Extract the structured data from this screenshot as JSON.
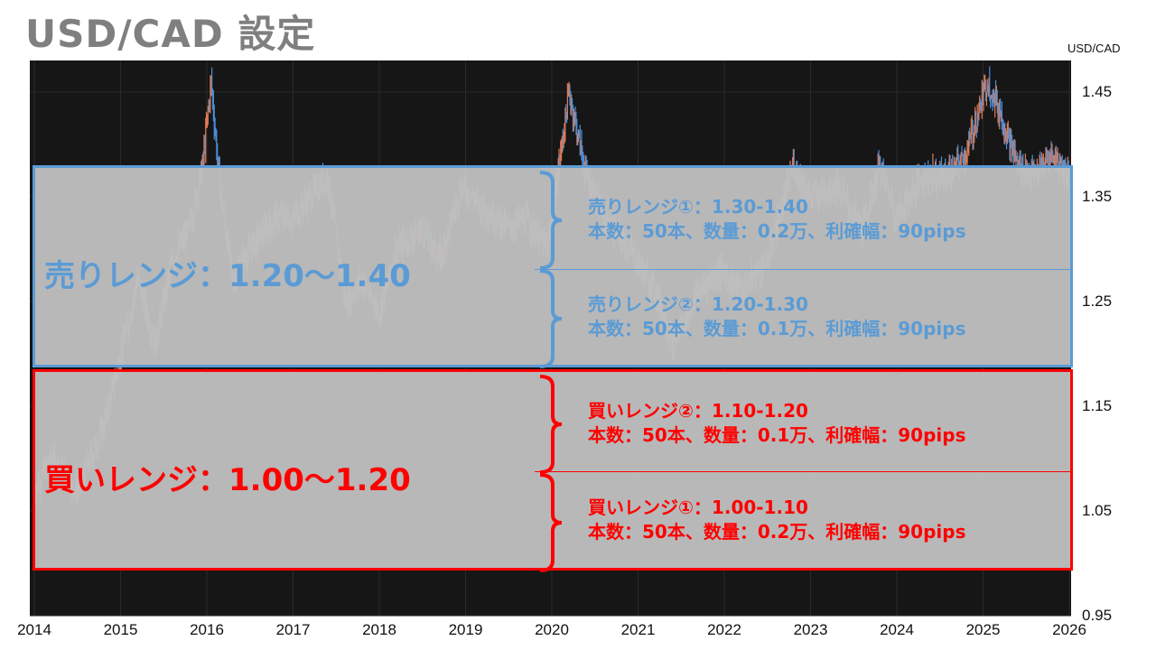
{
  "title": "USD/CAD  設定",
  "chart_data": {
    "type": "candlestick",
    "unit_label": "USD/CAD",
    "x_ticks": [
      "2014",
      "2015",
      "2016",
      "2017",
      "2018",
      "2019",
      "2020",
      "2021",
      "2022",
      "2023",
      "2024",
      "2025",
      "2026"
    ],
    "y_ticks": [
      "1.45",
      "1.35",
      "1.25",
      "1.15",
      "1.05",
      "0.95"
    ],
    "ylim": [
      0.95,
      1.48
    ],
    "xlim": [
      2014,
      2026
    ],
    "series": [
      {
        "x": 2014.0,
        "y": 1.07
      },
      {
        "x": 2014.2,
        "y": 1.1
      },
      {
        "x": 2014.5,
        "y": 1.07
      },
      {
        "x": 2014.8,
        "y": 1.13
      },
      {
        "x": 2015.0,
        "y": 1.2
      },
      {
        "x": 2015.2,
        "y": 1.27
      },
      {
        "x": 2015.4,
        "y": 1.21
      },
      {
        "x": 2015.6,
        "y": 1.29
      },
      {
        "x": 2015.8,
        "y": 1.32
      },
      {
        "x": 2015.95,
        "y": 1.38
      },
      {
        "x": 2016.05,
        "y": 1.46
      },
      {
        "x": 2016.15,
        "y": 1.36
      },
      {
        "x": 2016.3,
        "y": 1.27
      },
      {
        "x": 2016.5,
        "y": 1.3
      },
      {
        "x": 2016.8,
        "y": 1.33
      },
      {
        "x": 2017.0,
        "y": 1.33
      },
      {
        "x": 2017.2,
        "y": 1.35
      },
      {
        "x": 2017.4,
        "y": 1.37
      },
      {
        "x": 2017.6,
        "y": 1.25
      },
      {
        "x": 2017.8,
        "y": 1.27
      },
      {
        "x": 2018.0,
        "y": 1.24
      },
      {
        "x": 2018.2,
        "y": 1.3
      },
      {
        "x": 2018.5,
        "y": 1.32
      },
      {
        "x": 2018.7,
        "y": 1.29
      },
      {
        "x": 2018.95,
        "y": 1.36
      },
      {
        "x": 2019.2,
        "y": 1.34
      },
      {
        "x": 2019.5,
        "y": 1.32
      },
      {
        "x": 2019.7,
        "y": 1.33
      },
      {
        "x": 2019.95,
        "y": 1.3
      },
      {
        "x": 2020.2,
        "y": 1.45
      },
      {
        "x": 2020.4,
        "y": 1.37
      },
      {
        "x": 2020.6,
        "y": 1.33
      },
      {
        "x": 2020.9,
        "y": 1.3
      },
      {
        "x": 2021.2,
        "y": 1.26
      },
      {
        "x": 2021.4,
        "y": 1.21
      },
      {
        "x": 2021.7,
        "y": 1.26
      },
      {
        "x": 2021.95,
        "y": 1.28
      },
      {
        "x": 2022.2,
        "y": 1.26
      },
      {
        "x": 2022.5,
        "y": 1.29
      },
      {
        "x": 2022.8,
        "y": 1.38
      },
      {
        "x": 2023.0,
        "y": 1.35
      },
      {
        "x": 2023.3,
        "y": 1.36
      },
      {
        "x": 2023.6,
        "y": 1.32
      },
      {
        "x": 2023.8,
        "y": 1.38
      },
      {
        "x": 2024.0,
        "y": 1.33
      },
      {
        "x": 2024.3,
        "y": 1.37
      },
      {
        "x": 2024.6,
        "y": 1.37
      },
      {
        "x": 2024.8,
        "y": 1.39
      },
      {
        "x": 2025.05,
        "y": 1.46
      },
      {
        "x": 2025.2,
        "y": 1.43
      },
      {
        "x": 2025.4,
        "y": 1.38
      },
      {
        "x": 2025.6,
        "y": 1.37
      },
      {
        "x": 2025.8,
        "y": 1.39
      },
      {
        "x": 2026.0,
        "y": 1.37
      }
    ],
    "ranges": [
      {
        "kind": "sell",
        "low": 1.2,
        "high": 1.4,
        "split": 1.3
      },
      {
        "kind": "buy",
        "low": 1.0,
        "high": 1.2,
        "split": 1.1
      }
    ]
  },
  "sell": {
    "main_label": "売りレンジ：1.20～1.40",
    "upper_line1": "売りレンジ①：1.30-1.40",
    "upper_line2": "本数：50本、数量：0.2万、利確幅：90pips",
    "lower_line1": "売りレンジ②：1.20-1.30",
    "lower_line2": "本数：50本、数量：0.1万、利確幅：90pips",
    "color": "#5b9bd5"
  },
  "buy": {
    "main_label": "買いレンジ：1.00～1.20",
    "upper_line1": "買いレンジ②：1.10-1.20",
    "upper_line2": "本数：50本、数量：0.1万、利確幅：90pips",
    "lower_line1": "買いレンジ①：1.00-1.10",
    "lower_line2": "本数：50本、数量：0.2万、利確幅：90pips",
    "color": "#ff0000"
  }
}
